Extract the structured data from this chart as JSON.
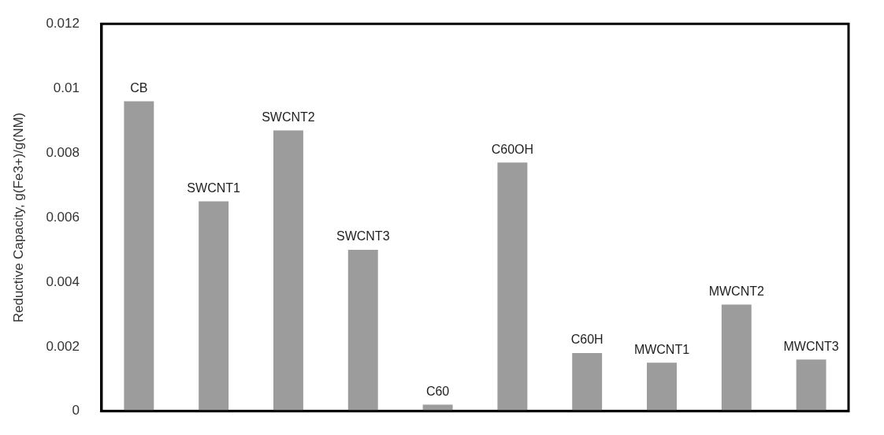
{
  "chart_data": {
    "type": "bar",
    "ylabel": "Reductive Capacity, g(Fe3+)/g(NM)",
    "categories": [
      "CB",
      "SWCNT1",
      "SWCNT2",
      "SWCNT3",
      "C60",
      "C60OH",
      "C60H",
      "MWCNT1",
      "MWCNT2",
      "MWCNT3"
    ],
    "values": [
      0.0096,
      0.0065,
      0.0087,
      0.005,
      0.0002,
      0.0077,
      0.0018,
      0.0015,
      0.0033,
      0.0016
    ],
    "color": "#9c9c9c",
    "ylim": [
      0,
      0.012
    ],
    "yticks": [
      0,
      0.002,
      0.004,
      0.006,
      0.008,
      0.01,
      0.012
    ],
    "grid": false,
    "legend": false,
    "tick_labels": "y"
  }
}
